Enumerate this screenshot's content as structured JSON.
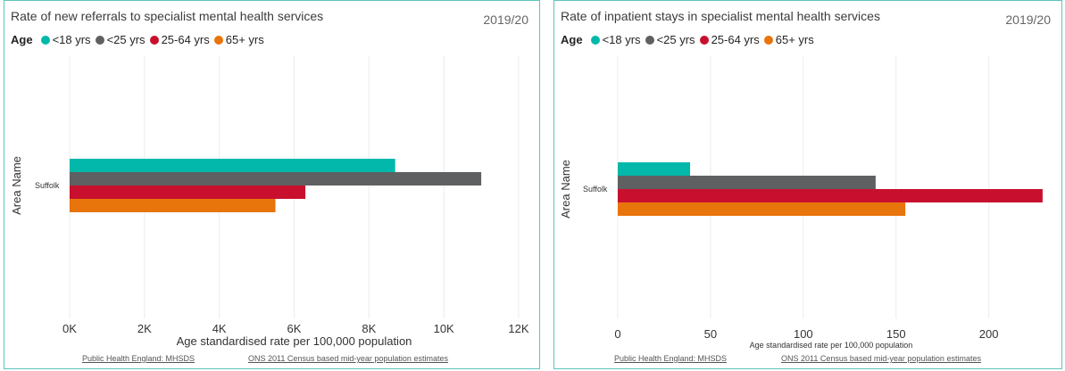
{
  "legend": {
    "title": "Age",
    "items": [
      {
        "label": "<18 yrs",
        "color": "#01b8aa"
      },
      {
        "label": "<25 yrs",
        "color": "#5f6062"
      },
      {
        "label": "25-64 yrs",
        "color": "#c8102e"
      },
      {
        "label": "65+ yrs",
        "color": "#e8740c"
      }
    ]
  },
  "panels": [
    {
      "title": "Rate of new referrals to specialist mental health services",
      "period": "2019/20",
      "sources": [
        "Public Health England: MHSDS",
        "ONS 2011 Census based mid-year population estimates"
      ]
    },
    {
      "title": "Rate of inpatient stays in specialist mental health services",
      "period": "2019/20",
      "sources": [
        "Public Health England: MHSDS",
        "ONS 2011 Census based mid-year population estimates"
      ]
    }
  ],
  "chart_data": [
    {
      "type": "bar",
      "orientation": "horizontal",
      "title": "Rate of new referrals to specialist mental health services",
      "categories": [
        "Suffolk"
      ],
      "series": [
        {
          "name": "<18 yrs",
          "values": [
            8700
          ]
        },
        {
          "name": "<25 yrs",
          "values": [
            11000
          ]
        },
        {
          "name": "25-64 yrs",
          "values": [
            6300
          ]
        },
        {
          "name": "65+ yrs",
          "values": [
            5500
          ]
        }
      ],
      "xlabel": "Age standardised rate per 100,000 population",
      "ylabel": "Area Name",
      "xlim": [
        0,
        12000
      ],
      "ticks": [
        0,
        2000,
        4000,
        6000,
        8000,
        10000,
        12000
      ],
      "tick_labels": [
        "0K",
        "2K",
        "4K",
        "6K",
        "8K",
        "10K",
        "12K"
      ],
      "grid": true,
      "legend_position": "top-left"
    },
    {
      "type": "bar",
      "orientation": "horizontal",
      "title": "Rate of inpatient stays in specialist mental health services",
      "categories": [
        "Suffolk"
      ],
      "series": [
        {
          "name": "<18 yrs",
          "values": [
            39
          ]
        },
        {
          "name": "<25 yrs",
          "values": [
            139
          ]
        },
        {
          "name": "25-64 yrs",
          "values": [
            229
          ]
        },
        {
          "name": "65+ yrs",
          "values": [
            155
          ]
        }
      ],
      "xlabel": "Age standardised rate per 100,000 population",
      "ylabel": "Area Name",
      "xlim": [
        0,
        230
      ],
      "ticks": [
        0,
        50,
        100,
        150,
        200
      ],
      "tick_labels": [
        "0",
        "50",
        "100",
        "150",
        "200"
      ],
      "grid": true,
      "legend_position": "top-left"
    }
  ]
}
